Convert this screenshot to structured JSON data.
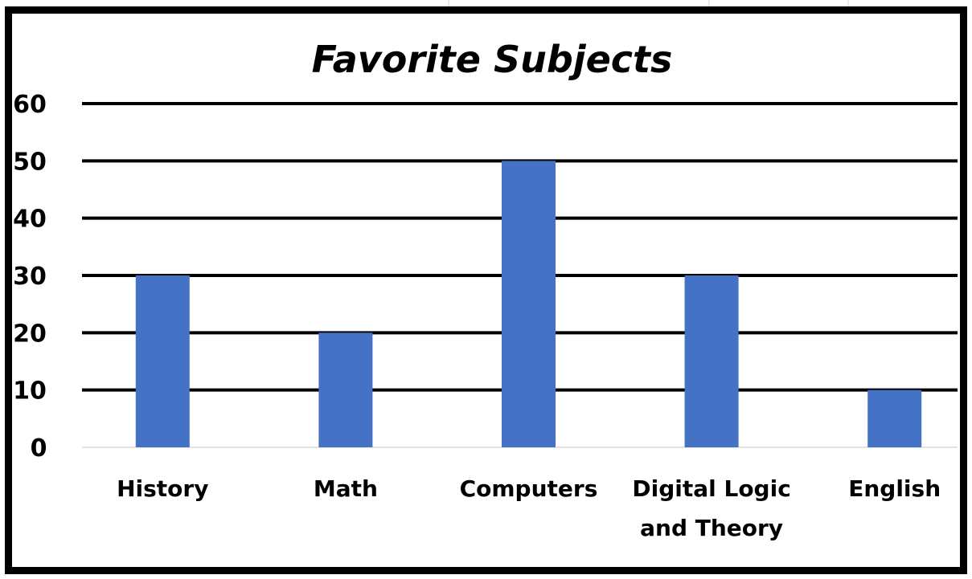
{
  "chart_data": {
    "type": "bar",
    "title": "Favorite Subjects",
    "xlabel": "",
    "ylabel": "",
    "categories": [
      [
        "History"
      ],
      [
        "Math"
      ],
      [
        "Computers"
      ],
      [
        "Digital Logic",
        "and Theory"
      ],
      [
        "English"
      ]
    ],
    "values": [
      30,
      20,
      50,
      30,
      10
    ],
    "ylim": [
      0,
      60
    ],
    "yticks": [
      "0",
      "10",
      "20",
      "30",
      "40",
      "50",
      "60"
    ],
    "grid": true,
    "legend": "none",
    "bar_color": "#4472C4",
    "gridline_color": "#000000"
  }
}
